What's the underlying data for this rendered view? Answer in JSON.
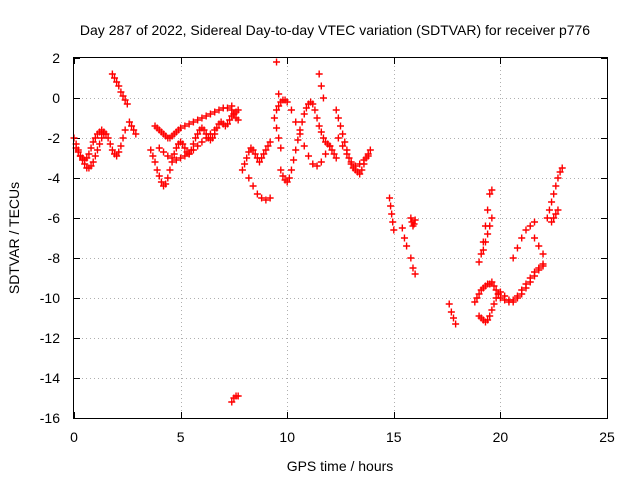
{
  "chart_data": {
    "type": "scatter",
    "title": "Day 287 of 2022, Sidereal Day-to-day VTEC variation (SDTVAR) for receiver p776",
    "xlabel": "GPS time / hours",
    "ylabel": "SDTVAR / TECUs",
    "xlim": [
      0,
      25
    ],
    "ylim": [
      -16,
      2
    ],
    "xticks": [
      0,
      5,
      10,
      15,
      20,
      25
    ],
    "yticks": [
      2,
      0,
      -2,
      -4,
      -6,
      -8,
      -10,
      -12,
      -14,
      -16
    ],
    "xtick_labels": [
      "0",
      "5",
      "10",
      "15",
      "20",
      "25"
    ],
    "ytick_labels": [
      "2",
      "0",
      "-2",
      "-4",
      "-6",
      "-8",
      "-10",
      "-12",
      "-14",
      "-16"
    ],
    "grid": true,
    "marker": "plus",
    "marker_color": "#ff0000",
    "series": [
      {
        "name": "SDTVAR",
        "x": [
          0.0,
          0.1,
          0.2,
          0.3,
          0.4,
          0.5,
          0.6,
          0.7,
          0.8,
          0.9,
          1.0,
          1.1,
          1.2,
          1.3,
          1.4,
          1.5,
          1.6,
          1.7,
          1.8,
          1.9,
          2.0,
          2.1,
          2.2,
          2.3,
          2.4,
          0.1,
          0.2,
          0.3,
          0.4,
          0.5,
          0.6,
          0.7,
          0.8,
          0.9,
          1.0,
          1.1,
          1.2,
          1.3,
          1.4,
          1.8,
          1.9,
          2.0,
          2.1,
          2.2,
          2.3,
          2.4,
          2.5,
          2.6,
          2.7,
          2.8,
          2.9,
          3.6,
          3.7,
          3.8,
          3.9,
          4.0,
          4.1,
          4.2,
          4.3,
          4.4,
          4.5,
          4.6,
          4.7,
          4.8,
          4.9,
          5.0,
          5.1,
          5.2,
          5.3,
          5.4,
          5.5,
          5.6,
          5.7,
          5.8,
          5.9,
          6.0,
          6.1,
          6.2,
          6.3,
          6.4,
          6.5,
          6.6,
          6.7,
          6.8,
          6.9,
          7.0,
          7.1,
          7.2,
          7.3,
          7.4,
          7.5,
          7.6,
          7.7,
          3.8,
          3.9,
          4.0,
          4.1,
          4.2,
          4.3,
          4.4,
          4.5,
          4.6,
          4.7,
          4.8,
          4.9,
          5.0,
          5.2,
          5.4,
          5.6,
          5.8,
          6.0,
          6.2,
          6.4,
          6.6,
          6.8,
          7.0,
          7.2,
          7.4,
          4.0,
          4.2,
          4.4,
          4.6,
          4.8,
          5.0,
          5.2,
          5.4,
          5.6,
          5.8,
          6.0,
          6.2,
          6.4,
          6.6,
          7.4,
          7.5,
          7.6,
          7.7,
          7.9,
          8.0,
          8.1,
          8.2,
          8.3,
          8.4,
          8.5,
          8.6,
          8.7,
          8.8,
          8.9,
          9.0,
          9.1,
          9.2,
          8.2,
          8.4,
          8.6,
          8.8,
          9.0,
          9.2,
          9.5,
          9.6,
          9.7,
          9.8,
          9.9,
          10.0,
          10.1,
          10.2,
          10.3,
          10.4,
          10.5,
          10.6,
          10.7,
          10.8,
          10.9,
          11.0,
          11.1,
          11.2,
          11.3,
          11.4,
          11.5,
          11.6,
          11.7,
          11.8,
          11.9,
          12.0,
          12.1,
          12.2,
          12.3,
          9.5,
          9.6,
          9.7,
          9.8,
          9.9,
          10.0,
          10.2,
          10.4,
          10.6,
          10.8,
          11.0,
          11.2,
          11.4,
          11.6,
          11.8,
          12.0,
          9.4,
          9.5,
          9.6,
          9.7,
          11.5,
          11.6,
          11.7,
          12.3,
          12.4,
          12.5,
          12.6,
          12.7,
          12.8,
          12.9,
          13.0,
          13.1,
          13.2,
          13.3,
          13.4,
          13.5,
          13.6,
          13.7,
          13.8,
          13.9,
          12.4,
          12.6,
          12.8,
          13.0,
          13.2,
          13.4,
          13.6,
          13.8,
          14.8,
          14.85,
          14.9,
          14.95,
          15.0,
          15.4,
          15.5,
          15.6,
          15.8,
          15.85,
          15.9,
          15.95,
          16.0,
          15.8,
          15.9,
          16.0,
          17.6,
          17.7,
          17.8,
          17.9,
          18.8,
          18.9,
          19.0,
          19.1,
          19.2,
          19.3,
          19.4,
          19.5,
          19.6,
          19.7,
          19.8,
          19.9,
          20.0,
          20.2,
          20.4,
          20.6,
          20.8,
          21.0,
          21.2,
          21.4,
          21.6,
          21.8,
          22.0,
          19.0,
          19.1,
          19.2,
          19.3,
          19.4,
          19.5,
          19.6,
          19.7,
          19.8,
          19.9,
          20.0,
          20.2,
          20.4,
          20.6,
          20.8,
          21.0,
          21.2,
          21.4,
          21.6,
          21.8,
          22.0,
          19.0,
          19.1,
          19.2,
          19.3,
          19.4,
          19.5,
          19.6,
          19.2,
          19.3,
          19.4,
          19.5,
          19.6,
          20.6,
          20.8,
          21.0,
          21.2,
          21.4,
          21.6,
          21.6,
          21.8,
          22.0,
          22.2,
          22.3,
          22.4,
          22.5,
          22.6,
          22.7,
          22.8,
          22.9,
          22.4,
          22.5,
          22.6,
          22.7,
          7.4,
          7.5,
          7.6,
          7.7
        ],
        "y": [
          -2.0,
          -2.3,
          -2.6,
          -2.9,
          -3.1,
          -3.3,
          -3.5,
          -3.5,
          -3.4,
          -3.2,
          -2.9,
          -2.6,
          -2.3,
          -2.0,
          -1.8,
          -1.8,
          -2.0,
          -2.3,
          -2.6,
          -2.8,
          -2.9,
          -2.7,
          -2.4,
          -2.0,
          -1.6,
          -2.5,
          -2.7,
          -2.9,
          -3.0,
          -3.1,
          -3.0,
          -2.8,
          -2.5,
          -2.2,
          -2.0,
          -1.8,
          -1.7,
          -1.6,
          -1.7,
          1.2,
          1.0,
          0.8,
          0.6,
          0.3,
          0.1,
          -0.1,
          -0.3,
          -1.2,
          -1.4,
          -1.6,
          -1.8,
          -2.6,
          -2.9,
          -3.2,
          -3.6,
          -3.9,
          -4.2,
          -4.4,
          -4.3,
          -4.0,
          -3.6,
          -3.2,
          -2.8,
          -2.5,
          -2.3,
          -2.2,
          -2.3,
          -2.5,
          -2.7,
          -2.8,
          -2.6,
          -2.3,
          -2.0,
          -1.8,
          -1.6,
          -1.5,
          -1.6,
          -1.8,
          -2.0,
          -2.1,
          -2.0,
          -1.8,
          -1.5,
          -1.3,
          -1.2,
          -1.3,
          -1.4,
          -1.3,
          -1.1,
          -0.9,
          -0.8,
          -0.7,
          -0.6,
          -1.4,
          -1.5,
          -1.6,
          -1.7,
          -1.8,
          -1.9,
          -2.0,
          -2.0,
          -1.9,
          -1.8,
          -1.7,
          -1.6,
          -1.5,
          -1.4,
          -1.3,
          -1.2,
          -1.1,
          -1.0,
          -0.9,
          -0.8,
          -0.7,
          -0.6,
          -0.5,
          -0.5,
          -0.4,
          -2.5,
          -2.7,
          -2.9,
          -3.0,
          -3.1,
          -3.0,
          -2.9,
          -2.8,
          -2.6,
          -2.4,
          -2.2,
          -2.0,
          -1.8,
          -1.6,
          -0.6,
          -0.8,
          -1.0,
          -1.1,
          -3.6,
          -3.3,
          -3.0,
          -2.7,
          -2.5,
          -2.6,
          -2.8,
          -3.0,
          -3.2,
          -3.0,
          -2.8,
          -2.6,
          -2.4,
          -2.2,
          -4.0,
          -4.4,
          -4.8,
          -5.0,
          -5.1,
          -5.0,
          1.8,
          0.2,
          -3.6,
          -3.9,
          -4.1,
          -4.2,
          -4.0,
          -3.6,
          -3.1,
          -2.6,
          -2.1,
          -1.6,
          -1.2,
          -0.8,
          -0.5,
          -0.3,
          -0.2,
          -0.3,
          -0.6,
          -1.0,
          -1.4,
          -1.7,
          -2.0,
          -2.2,
          -2.3,
          -2.4,
          -2.6,
          -2.8,
          -3.0,
          -0.6,
          -0.4,
          -0.2,
          -0.1,
          -0.1,
          -0.2,
          -0.6,
          -1.2,
          -1.8,
          -2.4,
          -2.9,
          -3.3,
          -3.4,
          -3.2,
          -2.8,
          -2.4,
          -1.0,
          -1.5,
          -2.0,
          -2.5,
          1.2,
          0.6,
          0.0,
          -0.6,
          -1.0,
          -1.4,
          -1.8,
          -2.2,
          -2.6,
          -3.0,
          -3.3,
          -3.5,
          -3.6,
          -3.7,
          -3.8,
          -3.6,
          -3.3,
          -3.0,
          -2.8,
          -2.6,
          -2.0,
          -2.4,
          -2.8,
          -3.2,
          -3.4,
          -3.3,
          -3.1,
          -2.9,
          -5.0,
          -5.4,
          -5.8,
          -6.2,
          -6.6,
          -6.5,
          -7.0,
          -7.4,
          -6.0,
          -6.2,
          -6.4,
          -6.3,
          -6.1,
          -8.0,
          -8.5,
          -8.8,
          -10.3,
          -10.7,
          -11.0,
          -11.3,
          -10.2,
          -10.0,
          -9.8,
          -9.6,
          -9.5,
          -9.4,
          -9.3,
          -9.3,
          -9.2,
          -9.4,
          -9.6,
          -9.8,
          -10.0,
          -10.1,
          -10.2,
          -10.1,
          -9.9,
          -9.6,
          -9.3,
          -9.0,
          -8.7,
          -8.5,
          -8.4,
          -10.9,
          -11.0,
          -11.1,
          -11.2,
          -11.1,
          -10.9,
          -10.6,
          -10.3,
          -10.0,
          -9.8,
          -9.7,
          -9.9,
          -10.1,
          -10.2,
          -10.0,
          -9.8,
          -9.5,
          -9.2,
          -8.9,
          -8.6,
          -8.3,
          -8.2,
          -7.8,
          -7.2,
          -6.4,
          -5.6,
          -4.8,
          -4.6,
          -7.6,
          -7.2,
          -6.8,
          -6.4,
          -6.0,
          -8.0,
          -7.5,
          -7.0,
          -6.6,
          -6.4,
          -6.2,
          -7.0,
          -7.4,
          -7.8,
          -6.0,
          -5.6,
          -5.2,
          -4.8,
          -4.4,
          -4.0,
          -3.7,
          -3.5,
          -6.2,
          -6.0,
          -5.8,
          -5.6,
          -15.2,
          -15.0,
          -14.9,
          -14.9
        ]
      }
    ]
  }
}
